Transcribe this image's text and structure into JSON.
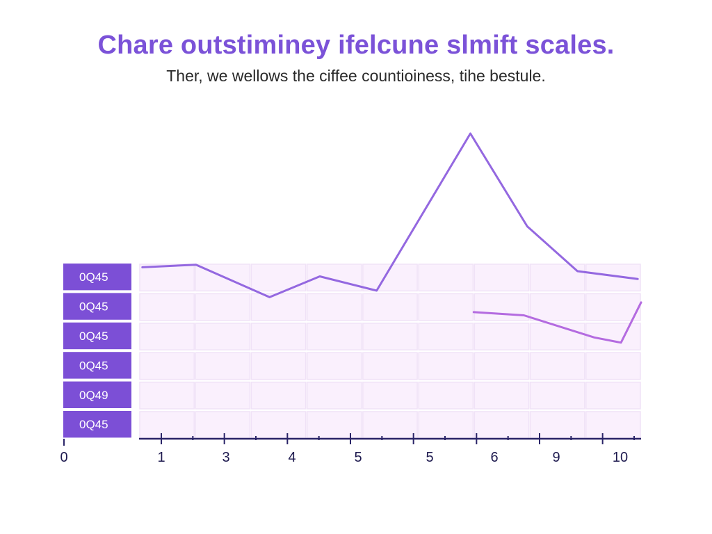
{
  "title": "Chare outstiminey ifelcune slmift scales.",
  "subtitle": "Ther, we wellows the ciffee countioiness, tihe bestule.",
  "colors": {
    "title": "#7b52d8",
    "line_primary": "#9468e0",
    "line_secondary": "#b46be0",
    "label_box": "#7c4fd6",
    "grid_fill": "#faf0fd",
    "grid_border": "#f0e2f7",
    "axis": "#2a2468"
  },
  "chart_data": {
    "type": "line",
    "title": "Chare outstiminey ifelcune slmift scales.",
    "subtitle": "Ther, we wellows the ciffee countioiness, tihe bestule.",
    "x_tick_labels": [
      "0",
      "1",
      "3",
      "4",
      "5",
      "5",
      "6",
      "9",
      "10"
    ],
    "row_labels": [
      "0Q45",
      "0Q45",
      "0Q45",
      "0Q45",
      "0Q49",
      "0Q45"
    ],
    "series": [
      {
        "values": [
          [
            0.1,
            6.4
          ],
          [
            1.7,
            6.8
          ],
          [
            3.9,
            1.8
          ],
          [
            5.4,
            5.0
          ],
          [
            7.1,
            2.8
          ],
          [
            9.9,
            27.0
          ],
          [
            11.6,
            12.7
          ],
          [
            13.1,
            5.8
          ],
          [
            14.9,
            4.6
          ]
        ]
      },
      {
        "values": [
          [
            10.0,
            -0.5
          ],
          [
            11.5,
            -1.0
          ],
          [
            13.6,
            -4.4
          ],
          [
            14.4,
            -5.2
          ],
          [
            15.0,
            1.0
          ]
        ]
      }
    ],
    "xlim": [
      0,
      15
    ],
    "ylim": [
      -20,
      30
    ],
    "grid": true,
    "legend": "none"
  }
}
